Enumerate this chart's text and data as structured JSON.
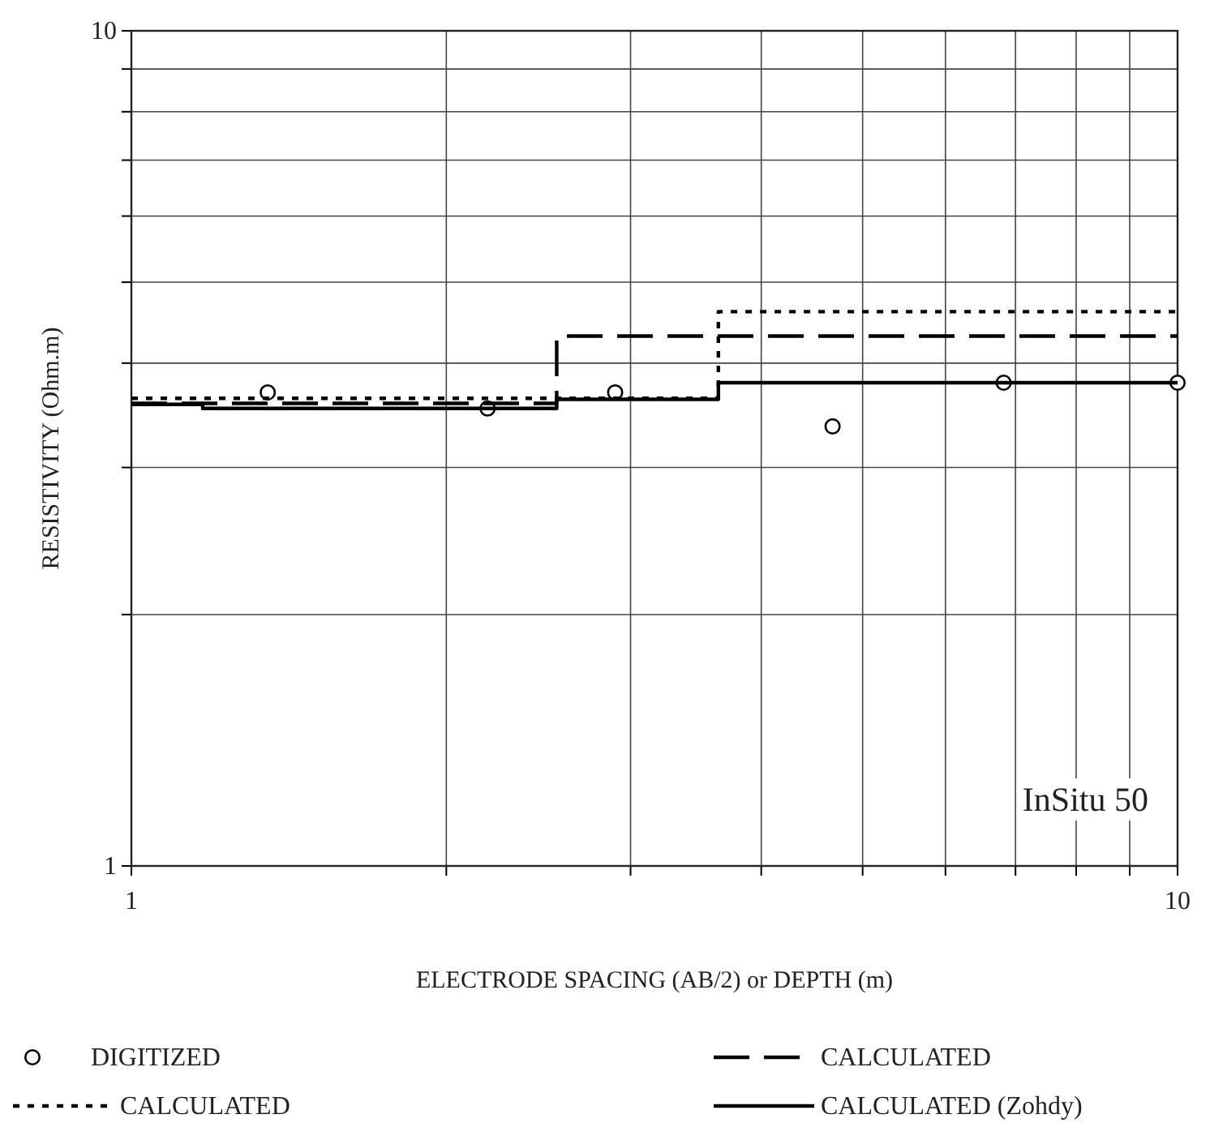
{
  "chart_data": {
    "type": "line",
    "xlabel": "ELECTRODE SPACING (AB/2) or DEPTH (m)",
    "ylabel": "RESISTIVITY (Ohm.m)",
    "log": "xy",
    "grid": true,
    "legend": "bottom",
    "xlim": [
      1,
      10
    ],
    "ylim": [
      1,
      10
    ],
    "xticks": [
      1,
      {
        "value": 2,
        "label": null
      },
      {
        "value": 3,
        "label": null
      },
      {
        "value": 4,
        "label": null
      },
      {
        "value": 5,
        "label": null
      },
      {
        "value": 6,
        "label": null
      },
      {
        "value": 7,
        "label": null
      },
      {
        "value": 8,
        "label": null
      },
      {
        "value": 9,
        "label": null
      },
      10
    ],
    "yticks": [
      1,
      {
        "value": 2,
        "label": null
      },
      {
        "value": 3,
        "label": null
      },
      {
        "value": 4,
        "label": null
      },
      {
        "value": 5,
        "label": null
      },
      {
        "value": 6,
        "label": null
      },
      {
        "value": 7,
        "label": null
      },
      {
        "value": 8,
        "label": null
      },
      {
        "value": 9,
        "label": null
      },
      10
    ],
    "annotations": [
      "InSitu 50"
    ],
    "series": [
      {
        "name": "DIGITIZED",
        "type": "scatter",
        "marker": "circle",
        "color": "#000000",
        "x": [
          1.35,
          2.19,
          2.9,
          4.68,
          6.82,
          10
        ],
        "values": [
          3.69,
          3.53,
          3.69,
          3.36,
          3.79,
          3.79
        ]
      },
      {
        "name": "CALCULATED",
        "type": "step",
        "line_style": "dashed",
        "color": "#000000",
        "x": [
          1,
          2.55,
          10
        ],
        "values": [
          3.58,
          4.31,
          4.31
        ]
      },
      {
        "name": "CALCULATED",
        "type": "step",
        "line_style": "dotted",
        "color": "#000000",
        "x": [
          1,
          3.64,
          10
        ],
        "values": [
          3.63,
          4.61,
          4.61
        ]
      },
      {
        "name": "CALCULATED (Zohdy)",
        "type": "step",
        "line_style": "solid",
        "color": "#000000",
        "x": [
          1,
          1.17,
          2.55,
          3.64,
          10
        ],
        "values": [
          3.57,
          3.53,
          3.62,
          3.79,
          3.79
        ]
      }
    ]
  }
}
